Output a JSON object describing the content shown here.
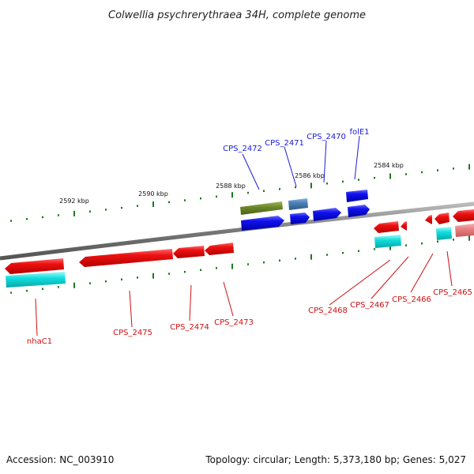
{
  "title": "Colwellia psychrerythraea 34H, complete genome",
  "footer": {
    "accession": "Accession: NC_003910",
    "topology": "Topology: circular; Length: 5,373,180 bp; Genes: 5,027"
  },
  "kbp_labels": [
    "2592 kbp",
    "2590 kbp",
    "2588 kbp",
    "2586 kbp",
    "2584 kbp"
  ],
  "labels_top": [
    "CPS_2472",
    "CPS_2471",
    "CPS_2470",
    "folE1"
  ],
  "labels_bottom": [
    "nhaC1",
    "CPS_2475",
    "CPS_2474",
    "CPS_2473",
    "CPS_2468",
    "CPS_2467",
    "CPS_2466",
    "CPS_2465"
  ],
  "colors": {
    "backbone": "#777777",
    "tick": "#1e7a1e",
    "gene_red": "#ee1111",
    "gene_blue": "#1111ee",
    "gene_cyan": "#11dddd",
    "gene_olive": "#6e8a2a",
    "gene_steel": "#4a7fb5",
    "gene_pink": "#e88080",
    "label_blue": "#1a1ad6",
    "label_red": "#cc1111"
  }
}
